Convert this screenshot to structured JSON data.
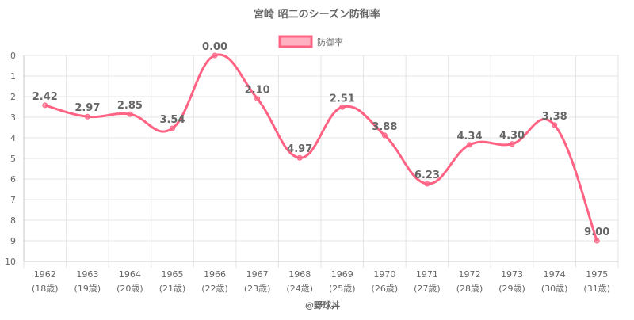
{
  "chart_data": {
    "type": "line",
    "title": "宮崎 昭二のシーズン防御率",
    "legend_position": "top-center",
    "series": [
      {
        "name": "防御率",
        "color": "#ff6384",
        "values": [
          2.42,
          2.97,
          2.85,
          3.54,
          0.0,
          2.1,
          4.97,
          2.51,
          3.88,
          6.23,
          4.34,
          4.3,
          3.38,
          9.0
        ],
        "labels": [
          "2.42",
          "2.97",
          "2.85",
          "3.54",
          "0.00",
          "2.10",
          "4.97",
          "2.51",
          "3.88",
          "6.23",
          "4.34",
          "4.30",
          "3.38",
          "9.00"
        ]
      }
    ],
    "categories": [
      "1962",
      "1963",
      "1964",
      "1965",
      "1966",
      "1967",
      "1968",
      "1969",
      "1970",
      "1971",
      "1972",
      "1973",
      "1974",
      "1975"
    ],
    "ages": [
      "(18歳)",
      "(19歳)",
      "(20歳)",
      "(21歳)",
      "(22歳)",
      "(23歳)",
      "(24歳)",
      "(25歳)",
      "(26歳)",
      "(27歳)",
      "(28歳)",
      "(29歳)",
      "(30歳)",
      "(31歳)"
    ],
    "ylim": [
      0,
      10
    ],
    "y_reversed": true,
    "yticks": [
      "0",
      "1",
      "2",
      "3",
      "4",
      "5",
      "6",
      "7",
      "8",
      "9",
      "10"
    ],
    "grid": true
  },
  "footer": {
    "credit": "@野球丼"
  }
}
